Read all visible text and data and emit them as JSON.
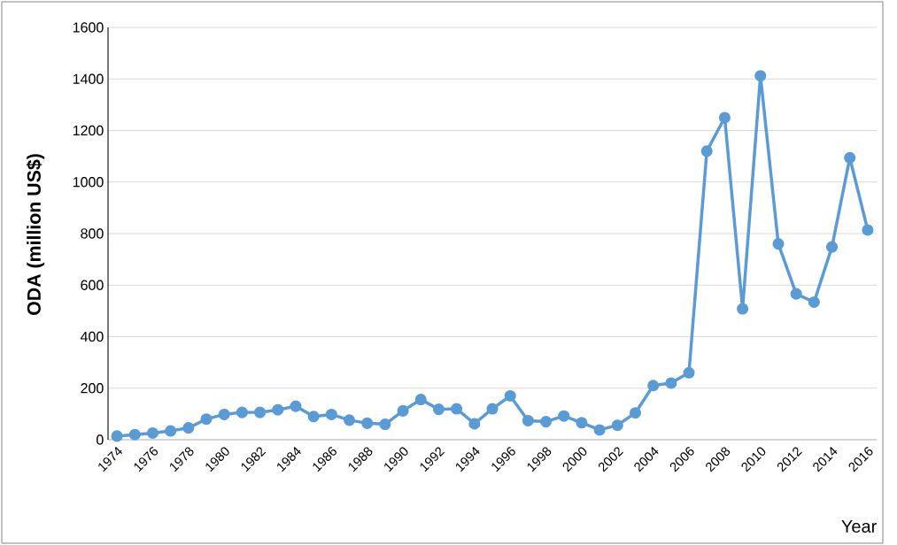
{
  "chart_data": {
    "type": "line",
    "xlabel": "Year",
    "ylabel": "ODA (million US$)",
    "x": [
      1974,
      1975,
      1976,
      1977,
      1978,
      1979,
      1980,
      1981,
      1982,
      1983,
      1984,
      1985,
      1986,
      1987,
      1988,
      1989,
      1990,
      1991,
      1992,
      1993,
      1994,
      1995,
      1996,
      1997,
      1998,
      1999,
      2000,
      2001,
      2002,
      2003,
      2004,
      2005,
      2006,
      2007,
      2008,
      2009,
      2010,
      2011,
      2012,
      2013,
      2014,
      2015,
      2016
    ],
    "series": [
      {
        "color": "#5b9bd5",
        "values": [
          14,
          20,
          26,
          34,
          46,
          80,
          98,
          106,
          106,
          116,
          130,
          90,
          98,
          76,
          64,
          60,
          112,
          156,
          118,
          120,
          62,
          120,
          170,
          74,
          70,
          92,
          66,
          38,
          56,
          104,
          210,
          220,
          260,
          1120,
          1250,
          508,
          1412,
          760,
          566,
          534,
          748,
          1094,
          814
        ]
      }
    ],
    "xlim": [
      1973.5,
      2016.5
    ],
    "xticks": [
      1974,
      1976,
      1978,
      1980,
      1982,
      1984,
      1986,
      1988,
      1990,
      1992,
      1994,
      1996,
      1998,
      2000,
      2002,
      2004,
      2006,
      2008,
      2010,
      2012,
      2014,
      2016
    ],
    "ylim": [
      0,
      1600
    ],
    "yticks": [
      0,
      200,
      400,
      600,
      800,
      1000,
      1200,
      1400,
      1600
    ],
    "grid": "y",
    "marker": "circle",
    "line_style": "solid"
  }
}
